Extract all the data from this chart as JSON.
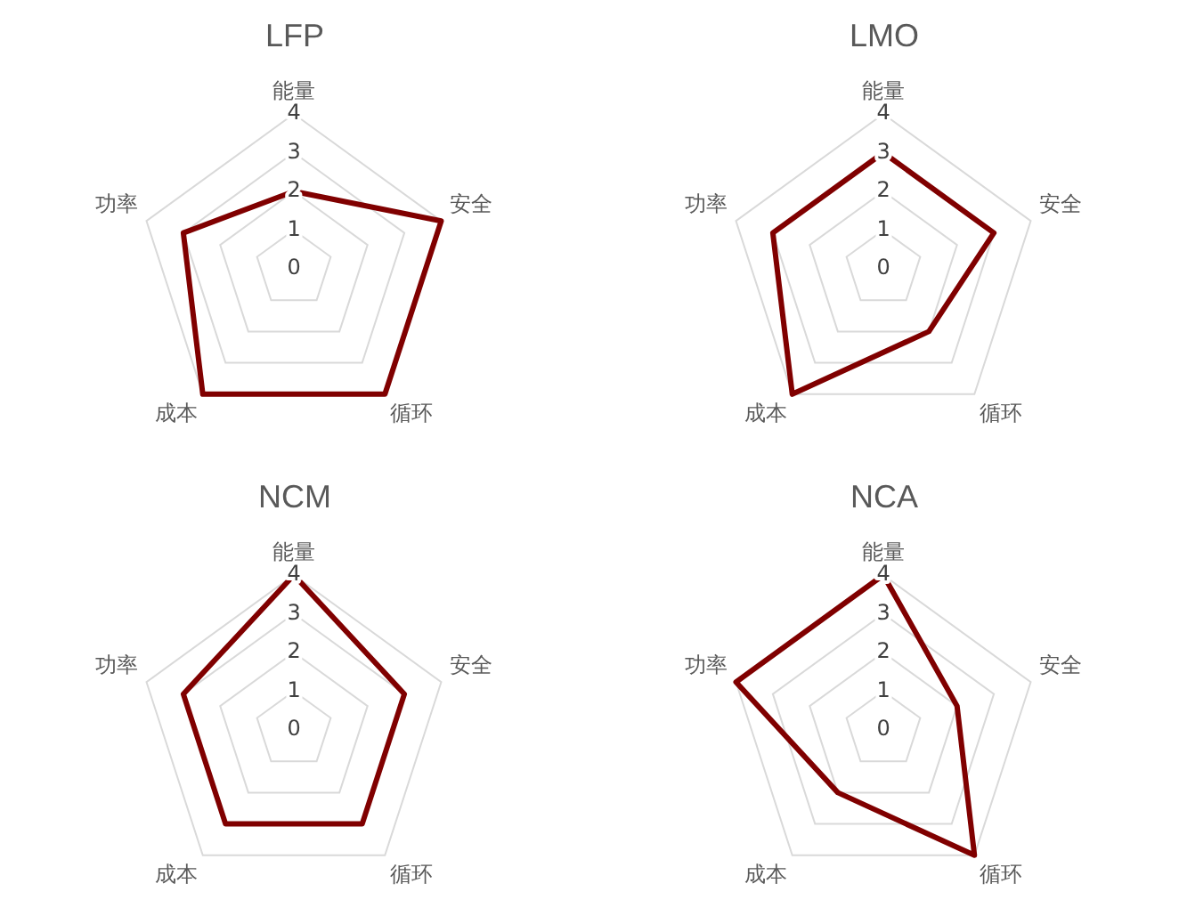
{
  "chart_data": [
    {
      "type": "radar",
      "title": "LFP",
      "categories": [
        "能量",
        "安全",
        "循环",
        "成本",
        "功率"
      ],
      "series": [
        {
          "color": "#800000",
          "values": [
            2,
            4,
            4,
            4,
            3
          ]
        }
      ],
      "ylim": [
        0,
        4
      ],
      "yticks": [
        0,
        1,
        2,
        3,
        4
      ],
      "grid": true,
      "legend": false,
      "marker": "none"
    },
    {
      "type": "radar",
      "title": "LMO",
      "categories": [
        "能量",
        "安全",
        "循环",
        "成本",
        "功率"
      ],
      "series": [
        {
          "color": "#800000",
          "values": [
            3,
            3,
            2,
            4,
            3
          ]
        }
      ],
      "ylim": [
        0,
        4
      ],
      "yticks": [
        0,
        1,
        2,
        3,
        4
      ],
      "grid": true,
      "legend": false,
      "marker": "none"
    },
    {
      "type": "radar",
      "title": "NCM",
      "categories": [
        "能量",
        "安全",
        "循环",
        "成本",
        "功率"
      ],
      "series": [
        {
          "color": "#800000",
          "values": [
            4,
            3,
            3,
            3,
            3
          ]
        }
      ],
      "ylim": [
        0,
        4
      ],
      "yticks": [
        0,
        1,
        2,
        3,
        4
      ],
      "grid": true,
      "legend": false,
      "marker": "none"
    },
    {
      "type": "radar",
      "title": "NCA",
      "categories": [
        "能量",
        "安全",
        "循环",
        "成本",
        "功率"
      ],
      "series": [
        {
          "color": "#800000",
          "values": [
            4,
            2,
            4,
            2,
            4
          ]
        }
      ],
      "ylim": [
        0,
        4
      ],
      "yticks": [
        0,
        1,
        2,
        3,
        4
      ],
      "grid": true,
      "legend": false,
      "marker": "none"
    }
  ]
}
